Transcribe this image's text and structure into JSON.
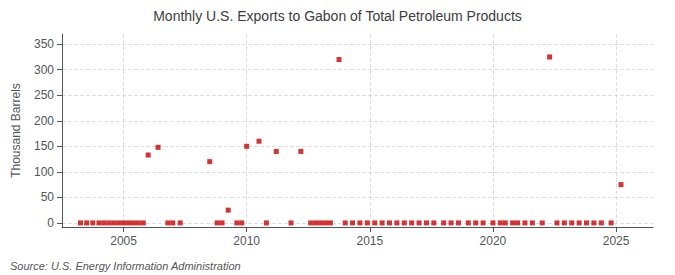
{
  "chart_data": {
    "type": "scatter",
    "title": "Monthly U.S. Exports to Gabon of Total Petroleum Products",
    "y_label": "Thousand Barrels",
    "annotations": [
      "Source: U.S. Energy Information Administration"
    ],
    "color": "#cc0000",
    "marker": "square",
    "grid": true,
    "xlim": [
      2002.5,
      2026.5
    ],
    "xticks": [
      2005,
      2010,
      2015,
      2020,
      2025
    ],
    "ylim": [
      -8,
      370
    ],
    "yticks": [
      0,
      50,
      100,
      150,
      200,
      250,
      300,
      350
    ],
    "x": [
      2003.25,
      2003.5,
      2003.75,
      2004.0,
      2004.2,
      2004.4,
      2004.6,
      2004.8,
      2005.0,
      2005.2,
      2005.4,
      2005.6,
      2005.8,
      2006.0,
      2006.4,
      2006.8,
      2007.0,
      2007.3,
      2008.5,
      2008.8,
      2009.0,
      2009.25,
      2009.6,
      2009.8,
      2010.0,
      2010.5,
      2010.8,
      2011.2,
      2011.8,
      2012.2,
      2012.6,
      2012.8,
      2013.0,
      2013.2,
      2013.4,
      2013.75,
      2014.0,
      2014.3,
      2014.6,
      2014.9,
      2015.2,
      2015.5,
      2015.8,
      2016.1,
      2016.4,
      2016.7,
      2017.0,
      2017.3,
      2017.6,
      2018.0,
      2018.3,
      2018.6,
      2019.0,
      2019.3,
      2019.6,
      2020.0,
      2020.3,
      2020.5,
      2020.8,
      2021.0,
      2021.3,
      2021.6,
      2022.0,
      2022.3,
      2022.6,
      2022.9,
      2023.2,
      2023.5,
      2023.8,
      2024.1,
      2024.4,
      2024.8,
      2025.2
    ],
    "values": [
      0,
      0,
      0,
      0,
      0,
      0,
      0,
      0,
      0,
      0,
      0,
      0,
      0,
      133,
      148,
      0,
      0,
      0,
      120,
      0,
      0,
      25,
      0,
      0,
      150,
      160,
      0,
      140,
      0,
      140,
      0,
      0,
      0,
      0,
      0,
      320,
      0,
      0,
      0,
      0,
      0,
      0,
      0,
      0,
      0,
      0,
      0,
      0,
      0,
      0,
      0,
      0,
      0,
      0,
      0,
      0,
      0,
      0,
      0,
      0,
      0,
      0,
      0,
      325,
      0,
      0,
      0,
      0,
      0,
      0,
      0,
      0,
      75
    ]
  }
}
